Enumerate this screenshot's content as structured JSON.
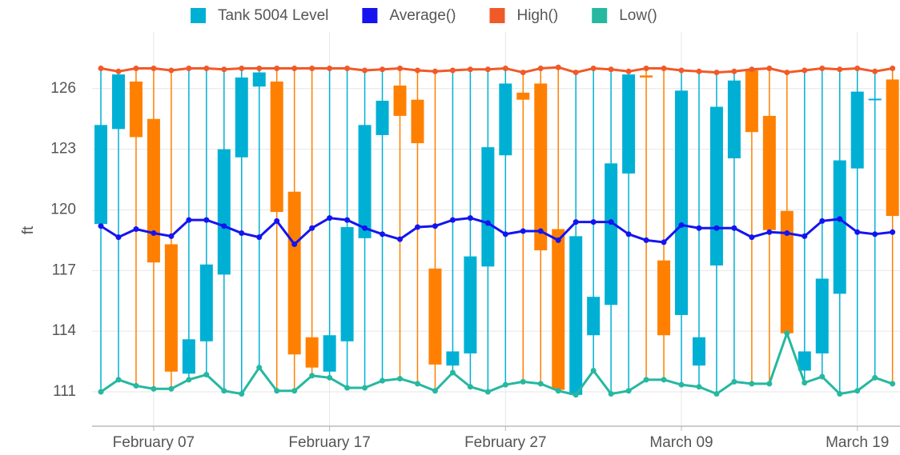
{
  "chart_data": {
    "type": "candlestick",
    "y_label": "ft",
    "legend": "top",
    "grid": true,
    "categories": [
      null,
      null,
      null,
      "February 07",
      null,
      null,
      null,
      null,
      null,
      null,
      null,
      null,
      null,
      "February 17",
      null,
      null,
      null,
      null,
      null,
      null,
      null,
      null,
      null,
      "February 27",
      null,
      null,
      null,
      null,
      null,
      null,
      null,
      null,
      null,
      "March 09",
      null,
      null,
      null,
      null,
      null,
      null,
      null,
      null,
      null,
      "March 19",
      null,
      null
    ],
    "ylim": [
      109.3,
      128.8
    ],
    "yticks": [
      111,
      114,
      117,
      120,
      123,
      126
    ],
    "series": [
      {
        "name": "Tank 5004 Level",
        "color": "#00b0d4",
        "down_color": "#ff8000",
        "open": [
          119.3,
          124.0,
          126.35,
          124.5,
          118.3,
          111.9,
          113.5,
          116.8,
          122.6,
          126.1,
          126.35,
          120.9,
          113.7,
          112.0,
          113.5,
          118.6,
          123.7,
          126.15,
          125.45,
          117.1,
          112.3,
          112.9,
          117.2,
          122.7,
          125.8,
          126.25,
          119.05,
          110.85,
          113.8,
          115.3,
          121.8,
          126.65,
          117.5,
          114.8,
          112.3,
          117.25,
          122.55,
          126.9,
          124.65,
          119.95,
          112.05,
          112.9,
          115.85,
          122.05,
          125.45,
          126.45
        ],
        "close": [
          124.2,
          126.7,
          123.6,
          117.4,
          112.0,
          113.6,
          117.3,
          123.0,
          126.55,
          126.8,
          119.9,
          112.85,
          112.2,
          113.8,
          119.15,
          124.2,
          125.4,
          124.65,
          123.3,
          112.35,
          113.0,
          117.7,
          123.1,
          126.25,
          125.45,
          118.0,
          111.1,
          118.7,
          115.7,
          122.3,
          126.7,
          126.55,
          113.8,
          125.9,
          113.7,
          125.1,
          126.4,
          123.85,
          119.0,
          113.9,
          113.0,
          116.6,
          122.45,
          125.85,
          125.5,
          119.7
        ],
        "high": [
          127.0,
          126.85,
          127.0,
          127.0,
          126.9,
          127.0,
          127.0,
          126.95,
          127.0,
          127.0,
          127.0,
          127.0,
          127.0,
          127.0,
          127.0,
          126.9,
          126.95,
          127.0,
          126.9,
          126.85,
          126.9,
          126.95,
          126.95,
          127.0,
          126.8,
          127.0,
          127.05,
          126.8,
          127.0,
          126.95,
          126.85,
          127.0,
          127.0,
          126.9,
          126.85,
          126.8,
          126.85,
          126.95,
          127.0,
          126.8,
          126.9,
          127.0,
          126.95,
          127.0,
          126.85,
          127.0
        ],
        "low": [
          111.0,
          111.6,
          111.3,
          111.15,
          111.15,
          111.6,
          111.85,
          111.05,
          110.9,
          112.2,
          111.05,
          111.05,
          111.8,
          111.7,
          111.2,
          111.2,
          111.55,
          111.65,
          111.4,
          111.05,
          111.95,
          111.25,
          111.0,
          111.35,
          111.5,
          111.4,
          111.05,
          110.85,
          112.05,
          110.9,
          111.05,
          111.6,
          111.6,
          111.35,
          111.25,
          110.9,
          111.5,
          111.4,
          111.4,
          113.9,
          111.45,
          111.75,
          110.9,
          111.05,
          111.7,
          111.4
        ]
      },
      {
        "name": "Average()",
        "color": "#1414f0",
        "values": [
          119.2,
          118.65,
          119.05,
          118.85,
          118.7,
          119.5,
          119.5,
          119.2,
          118.85,
          118.65,
          119.45,
          118.3,
          119.1,
          119.6,
          119.5,
          119.1,
          118.8,
          118.55,
          119.15,
          119.2,
          119.5,
          119.6,
          119.35,
          118.8,
          118.95,
          118.95,
          118.5,
          119.4,
          119.4,
          119.4,
          118.8,
          118.5,
          118.4,
          119.25,
          119.1,
          119.1,
          119.1,
          118.65,
          118.9,
          118.85,
          118.7,
          119.45,
          119.55,
          118.9,
          118.8,
          118.9
        ]
      },
      {
        "name": "High()",
        "color": "#f05a28",
        "values": [
          127.0,
          126.85,
          127.0,
          127.0,
          126.9,
          127.0,
          127.0,
          126.95,
          127.0,
          127.0,
          127.0,
          127.0,
          127.0,
          127.0,
          127.0,
          126.9,
          126.95,
          127.0,
          126.9,
          126.85,
          126.9,
          126.95,
          126.95,
          127.0,
          126.8,
          127.0,
          127.05,
          126.8,
          127.0,
          126.95,
          126.85,
          127.0,
          127.0,
          126.9,
          126.85,
          126.8,
          126.85,
          126.95,
          127.0,
          126.8,
          126.9,
          127.0,
          126.95,
          127.0,
          126.85,
          127.0
        ]
      },
      {
        "name": "Low()",
        "color": "#26b8a0",
        "values": [
          111.0,
          111.6,
          111.3,
          111.15,
          111.15,
          111.6,
          111.85,
          111.05,
          110.9,
          112.2,
          111.05,
          111.05,
          111.8,
          111.7,
          111.2,
          111.2,
          111.55,
          111.65,
          111.4,
          111.05,
          111.95,
          111.25,
          111.0,
          111.35,
          111.5,
          111.4,
          111.05,
          110.85,
          112.05,
          110.9,
          111.05,
          111.6,
          111.6,
          111.35,
          111.25,
          110.9,
          111.5,
          111.4,
          111.4,
          113.9,
          111.45,
          111.75,
          110.9,
          111.05,
          111.7,
          111.4
        ]
      }
    ]
  }
}
